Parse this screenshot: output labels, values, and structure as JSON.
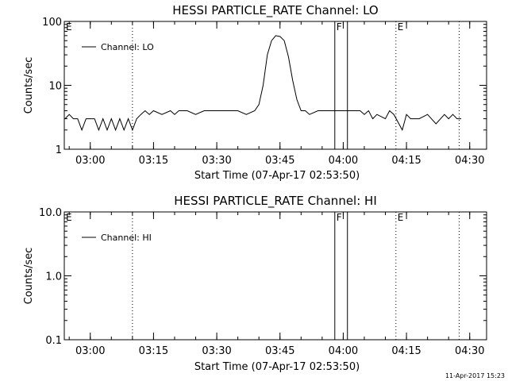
{
  "timestamp": "11-Apr-2017 15:23",
  "chart_data": [
    {
      "type": "line",
      "title": "HESSI PARTICLE_RATE Channel: LO",
      "xlabel": "Start Time (07-Apr-17 02:53:50)",
      "ylabel": "Counts/sec",
      "yscale": "log",
      "ylim": [
        1,
        100
      ],
      "yticks": [
        1,
        10,
        100
      ],
      "yticklabels": [
        "1",
        "10",
        "100"
      ],
      "xlim": [
        "02:53:50",
        "04:34:00"
      ],
      "xticks": [
        "03:00",
        "03:15",
        "03:30",
        "03:45",
        "04:00",
        "04:15",
        "04:30"
      ],
      "legend": {
        "placement": "top-left",
        "entries": [
          "Channel: LO"
        ]
      },
      "grid": false,
      "markers": [
        {
          "label": "E",
          "time": "02:53:50",
          "style": "dotted"
        },
        {
          "label": "",
          "time": "03:10:00",
          "style": "dotted"
        },
        {
          "label": "F",
          "time": "03:58:00",
          "style": "solid"
        },
        {
          "label": "",
          "time": "04:01:00",
          "style": "solid"
        },
        {
          "label": "E",
          "time": "04:12:30",
          "style": "dotted"
        },
        {
          "label": "",
          "time": "04:27:30",
          "style": "dotted"
        }
      ],
      "series": [
        {
          "name": "Channel: LO",
          "x": [
            "02:54:00",
            "02:55:00",
            "02:56:00",
            "02:57:00",
            "02:58:00",
            "02:59:00",
            "03:00:00",
            "03:01:00",
            "03:02:00",
            "03:03:00",
            "03:04:00",
            "03:05:00",
            "03:06:00",
            "03:07:00",
            "03:08:00",
            "03:09:00",
            "03:10:00",
            "03:11:00",
            "03:12:00",
            "03:13:00",
            "03:14:00",
            "03:15:00",
            "03:17:00",
            "03:19:00",
            "03:20:00",
            "03:21:00",
            "03:23:00",
            "03:25:00",
            "03:27:00",
            "03:29:00",
            "03:31:00",
            "03:33:00",
            "03:35:00",
            "03:37:00",
            "03:39:00",
            "03:40:00",
            "03:41:00",
            "03:42:00",
            "03:43:00",
            "03:44:00",
            "03:45:00",
            "03:46:00",
            "03:47:00",
            "03:48:00",
            "03:49:00",
            "03:50:00",
            "03:51:00",
            "03:52:00",
            "03:54:00",
            "03:56:00",
            "03:58:00",
            "04:00:00",
            "04:02:00",
            "04:04:00",
            "04:05:00",
            "04:06:00",
            "04:07:00",
            "04:08:00",
            "04:10:00",
            "04:11:00",
            "04:12:00",
            "04:14:00",
            "04:15:00",
            "04:16:00",
            "04:18:00",
            "04:20:00",
            "04:22:00",
            "04:24:00",
            "04:25:00",
            "04:26:00",
            "04:27:00",
            "04:28:00"
          ],
          "y": [
            3,
            3.5,
            3,
            3,
            2,
            3,
            3,
            3,
            2,
            3,
            2,
            3,
            2,
            3,
            2,
            3,
            2,
            3,
            3.5,
            4,
            3.5,
            4,
            3.5,
            4,
            3.5,
            4,
            4,
            3.5,
            4,
            4,
            4,
            4,
            4,
            3.5,
            4,
            5,
            10,
            30,
            50,
            60,
            58,
            50,
            28,
            12,
            6,
            4,
            4,
            3.5,
            4,
            4,
            4,
            4,
            4,
            4,
            3.5,
            4,
            3,
            3.5,
            3,
            4,
            3.5,
            2,
            3.5,
            3,
            3,
            3.5,
            2.5,
            3.5,
            3,
            3.5,
            3,
            3
          ]
        }
      ]
    },
    {
      "type": "line",
      "title": "HESSI PARTICLE_RATE Channel: HI",
      "xlabel": "Start Time (07-Apr-17 02:53:50)",
      "ylabel": "Counts/sec",
      "yscale": "log",
      "ylim": [
        0.1,
        10
      ],
      "yticks": [
        0.1,
        1,
        10
      ],
      "yticklabels": [
        "0.1",
        "1.0",
        "10.0"
      ],
      "xlim": [
        "02:53:50",
        "04:34:00"
      ],
      "xticks": [
        "03:00",
        "03:15",
        "03:30",
        "03:45",
        "04:00",
        "04:15",
        "04:30"
      ],
      "legend": {
        "placement": "top-left",
        "entries": [
          "Channel: HI"
        ]
      },
      "grid": false,
      "markers": [
        {
          "label": "E",
          "time": "02:53:50",
          "style": "dotted"
        },
        {
          "label": "",
          "time": "03:10:00",
          "style": "dotted"
        },
        {
          "label": "F",
          "time": "03:58:00",
          "style": "solid"
        },
        {
          "label": "",
          "time": "04:01:00",
          "style": "solid"
        },
        {
          "label": "E",
          "time": "04:12:30",
          "style": "dotted"
        },
        {
          "label": "",
          "time": "04:27:30",
          "style": "dotted"
        }
      ],
      "series": [
        {
          "name": "Channel: HI",
          "x": [],
          "y": []
        }
      ]
    }
  ]
}
